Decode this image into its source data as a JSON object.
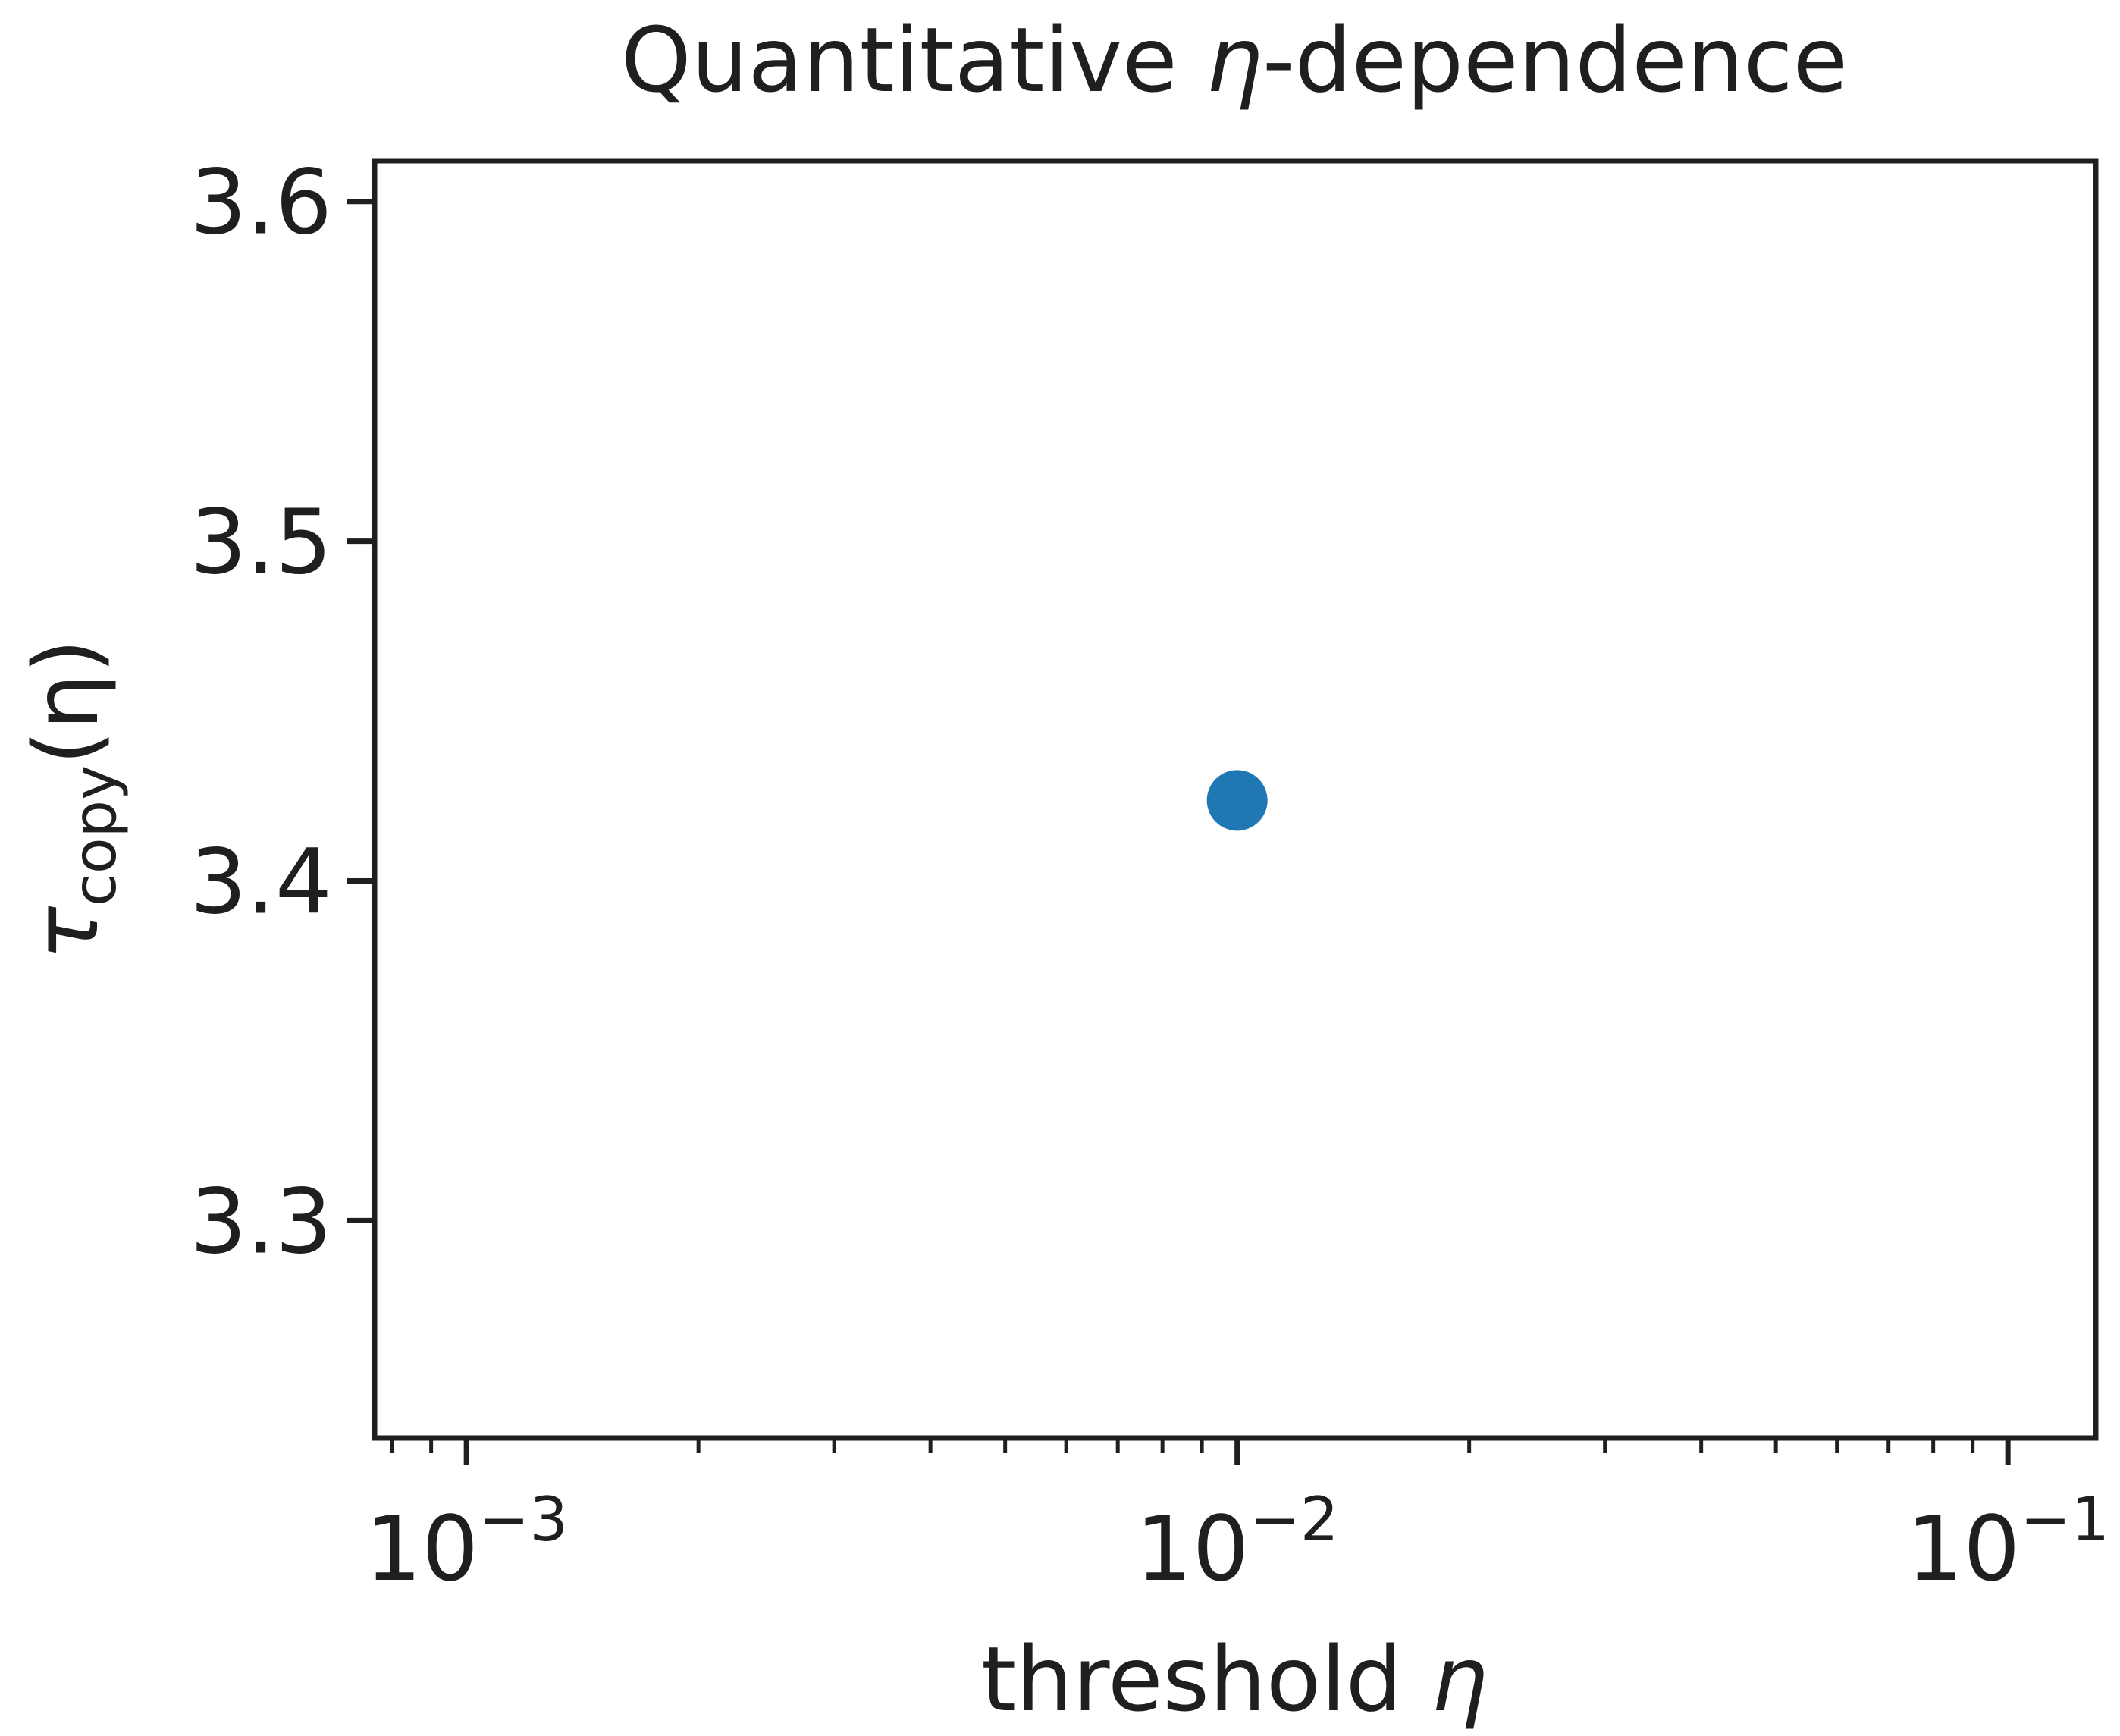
{
  "chart_data": {
    "type": "scatter",
    "title_pre": "Quantitative ",
    "title_sym": "η",
    "title_post": "-dependence",
    "xlabel_pre": "threshold ",
    "xlabel_sym": "η",
    "ylabel_sym": "τ",
    "ylabel_sub": "copy",
    "ylabel_arg": "(η)",
    "x_scale": "log",
    "xlim": [
      0.00076,
      0.13
    ],
    "ylim": [
      3.236,
      3.612
    ],
    "x_ticks": [
      {
        "value": 0.001,
        "base": "10",
        "exp": "−3"
      },
      {
        "value": 0.01,
        "base": "10",
        "exp": "−2"
      },
      {
        "value": 0.1,
        "base": "10",
        "exp": "−1"
      }
    ],
    "y_ticks": [
      "3.3",
      "3.4",
      "3.5",
      "3.6"
    ],
    "points": [
      {
        "x": 0.01,
        "y": 3.4237
      }
    ],
    "colors": {
      "point": "#1f77b4",
      "axes": "#1f1f1f"
    },
    "grid": false,
    "legend": "none"
  }
}
